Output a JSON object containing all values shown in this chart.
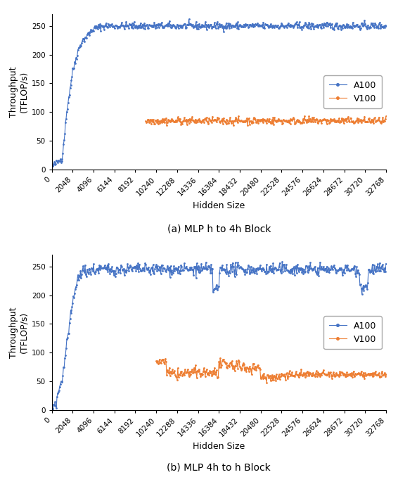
{
  "title_a": "(a) MLP h to 4h Block",
  "title_b": "(b) MLP 4h to h Block",
  "xlabel": "Hidden Size",
  "ylabel": "Throughput\n(TFLOP/s)",
  "ylim": [
    0,
    270
  ],
  "yticks": [
    0,
    50,
    100,
    150,
    200,
    250
  ],
  "xticks": [
    0,
    2048,
    4096,
    6144,
    8192,
    10240,
    12288,
    14336,
    16384,
    18432,
    20480,
    22528,
    24576,
    26624,
    28672,
    30720,
    32768
  ],
  "color_a100": "#4472c4",
  "color_v100": "#ed7d31",
  "legend_labels": [
    "A100",
    "V100"
  ],
  "marker": "o",
  "markersize": 2.0,
  "linewidth": 0.8,
  "tick_fontsize": 7.5,
  "label_fontsize": 9,
  "caption_fontsize": 10,
  "legend_fontsize": 9
}
